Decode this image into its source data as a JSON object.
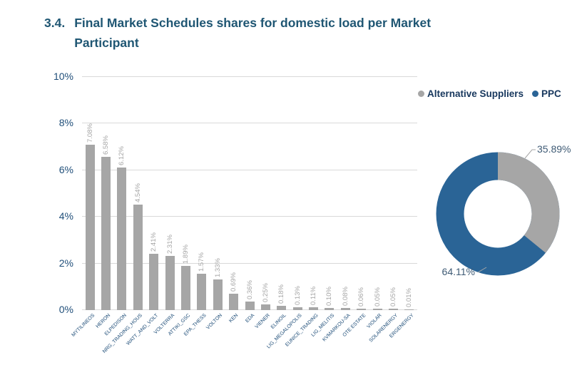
{
  "page": {
    "section_number": "3.4.",
    "section_title": "Final Market Schedules shares for domestic load per Market Participant"
  },
  "legend": {
    "items": [
      {
        "label": "Alternative Suppliers",
        "color": "#A6A6A6"
      },
      {
        "label": "PPC",
        "color": "#2A6496"
      }
    ]
  },
  "colors": {
    "bar_gray": "#A6A6A6",
    "ppc_blue": "#2A6496",
    "heading_blue": "#1F5673",
    "axis_blue": "#1F4E79"
  },
  "chart_data": [
    {
      "type": "bar",
      "title": "Final Market Schedules shares for domestic load per Market Participant",
      "categories": [
        "MYTILINEOS",
        "HERON",
        "ELPEDISON",
        "NRG_TRADING_HOUS",
        "WATT_AND_VOLT",
        "VOLTERRA",
        "ATTIKI_GSC",
        "EPA_THESS",
        "VOLTON",
        "KEN",
        "EDA",
        "VIENER",
        "ELINOIL",
        "LIG_MEGALOPOLIS",
        "EUNICE_TRADING",
        "LIG_MELITIS",
        "KVMARKOU-SA",
        "OTE ESTATE",
        "VIOLAR",
        "SOLARENERGY",
        "ERGENERGY"
      ],
      "values": [
        7.08,
        6.58,
        6.12,
        4.54,
        2.41,
        2.31,
        1.89,
        1.57,
        1.33,
        0.69,
        0.36,
        0.25,
        0.18,
        0.13,
        0.11,
        0.1,
        0.08,
        0.06,
        0.05,
        0.05,
        0.01
      ],
      "value_labels": [
        "7.08%",
        "6.58%",
        "6.12%",
        "4.54%",
        "2.41%",
        "2.31%",
        "1.89%",
        "1.57%",
        "1.33%",
        "0.69%",
        "0.36%",
        "0.25%",
        "0.18%",
        "0.13%",
        "0.11%",
        "0.10%",
        "0.08%",
        "0.06%",
        "0.05%",
        "0.05%",
        "0.01%"
      ],
      "xlabel": "",
      "ylabel": "",
      "ylim": [
        0,
        10
      ],
      "yticks": [
        "0%",
        "2%",
        "4%",
        "6%",
        "8%",
        "10%"
      ],
      "bar_color": "#A6A6A6",
      "grid": true,
      "legend_position": "top-right"
    },
    {
      "type": "donut",
      "series": [
        {
          "name": "Alternative Suppliers",
          "value": 35.89,
          "label": "35.89%",
          "color": "#A6A6A6"
        },
        {
          "name": "PPC",
          "value": 64.11,
          "label": "64.11%",
          "color": "#2A6496"
        }
      ]
    }
  ]
}
